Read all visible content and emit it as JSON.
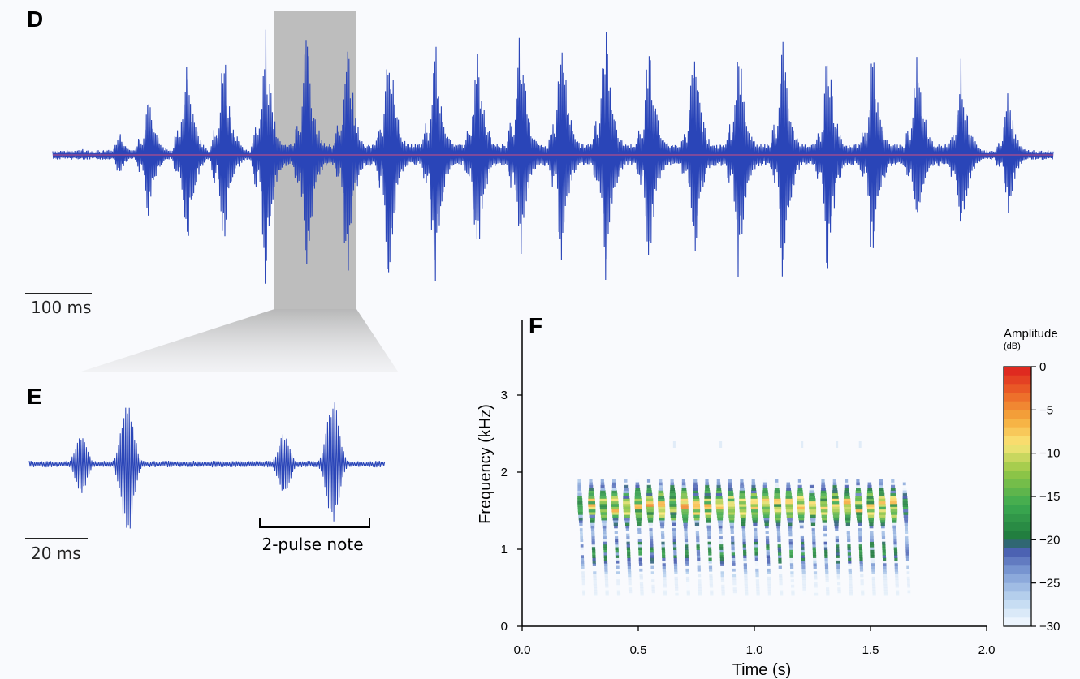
{
  "panels": {
    "d": {
      "letter": "D",
      "scale_bar_label": "100 ms"
    },
    "e": {
      "letter": "E",
      "scale_bar_label": "20 ms",
      "annotation": "2-pulse note"
    },
    "f": {
      "letter": "F"
    }
  },
  "colors": {
    "waveform": "#2a45b8",
    "baseline": "#d05080",
    "highlight": "#b8b8b8",
    "background": "#f9fafd"
  },
  "chart_data": {
    "type": "heatmap",
    "xlabel": "Time (s)",
    "ylabel": "Frequency (kHz)",
    "x_ticks": [
      "0.0",
      "0.5",
      "1.0",
      "1.5",
      "2.0"
    ],
    "y_ticks": [
      "0",
      "1",
      "2",
      "3"
    ],
    "xlim": [
      0,
      2.0
    ],
    "ylim": [
      0,
      4.0
    ],
    "colorbar": {
      "title": "Amplitude",
      "unit": "(dB)",
      "ticks": [
        "0",
        "−5",
        "−10",
        "−15",
        "−20",
        "−25",
        "−30"
      ],
      "range": [
        -30,
        0
      ]
    },
    "pulse_times_s": [
      0.25,
      0.3,
      0.35,
      0.4,
      0.45,
      0.5,
      0.55,
      0.6,
      0.65,
      0.7,
      0.75,
      0.8,
      0.85,
      0.9,
      0.95,
      1.0,
      1.05,
      1.1,
      1.15,
      1.2,
      1.25,
      1.3,
      1.35,
      1.4,
      1.45,
      1.5,
      1.55,
      1.6,
      1.65
    ],
    "freq_band_khz": [
      0.4,
      1.9
    ],
    "peak_freq_khz": 1.55
  }
}
